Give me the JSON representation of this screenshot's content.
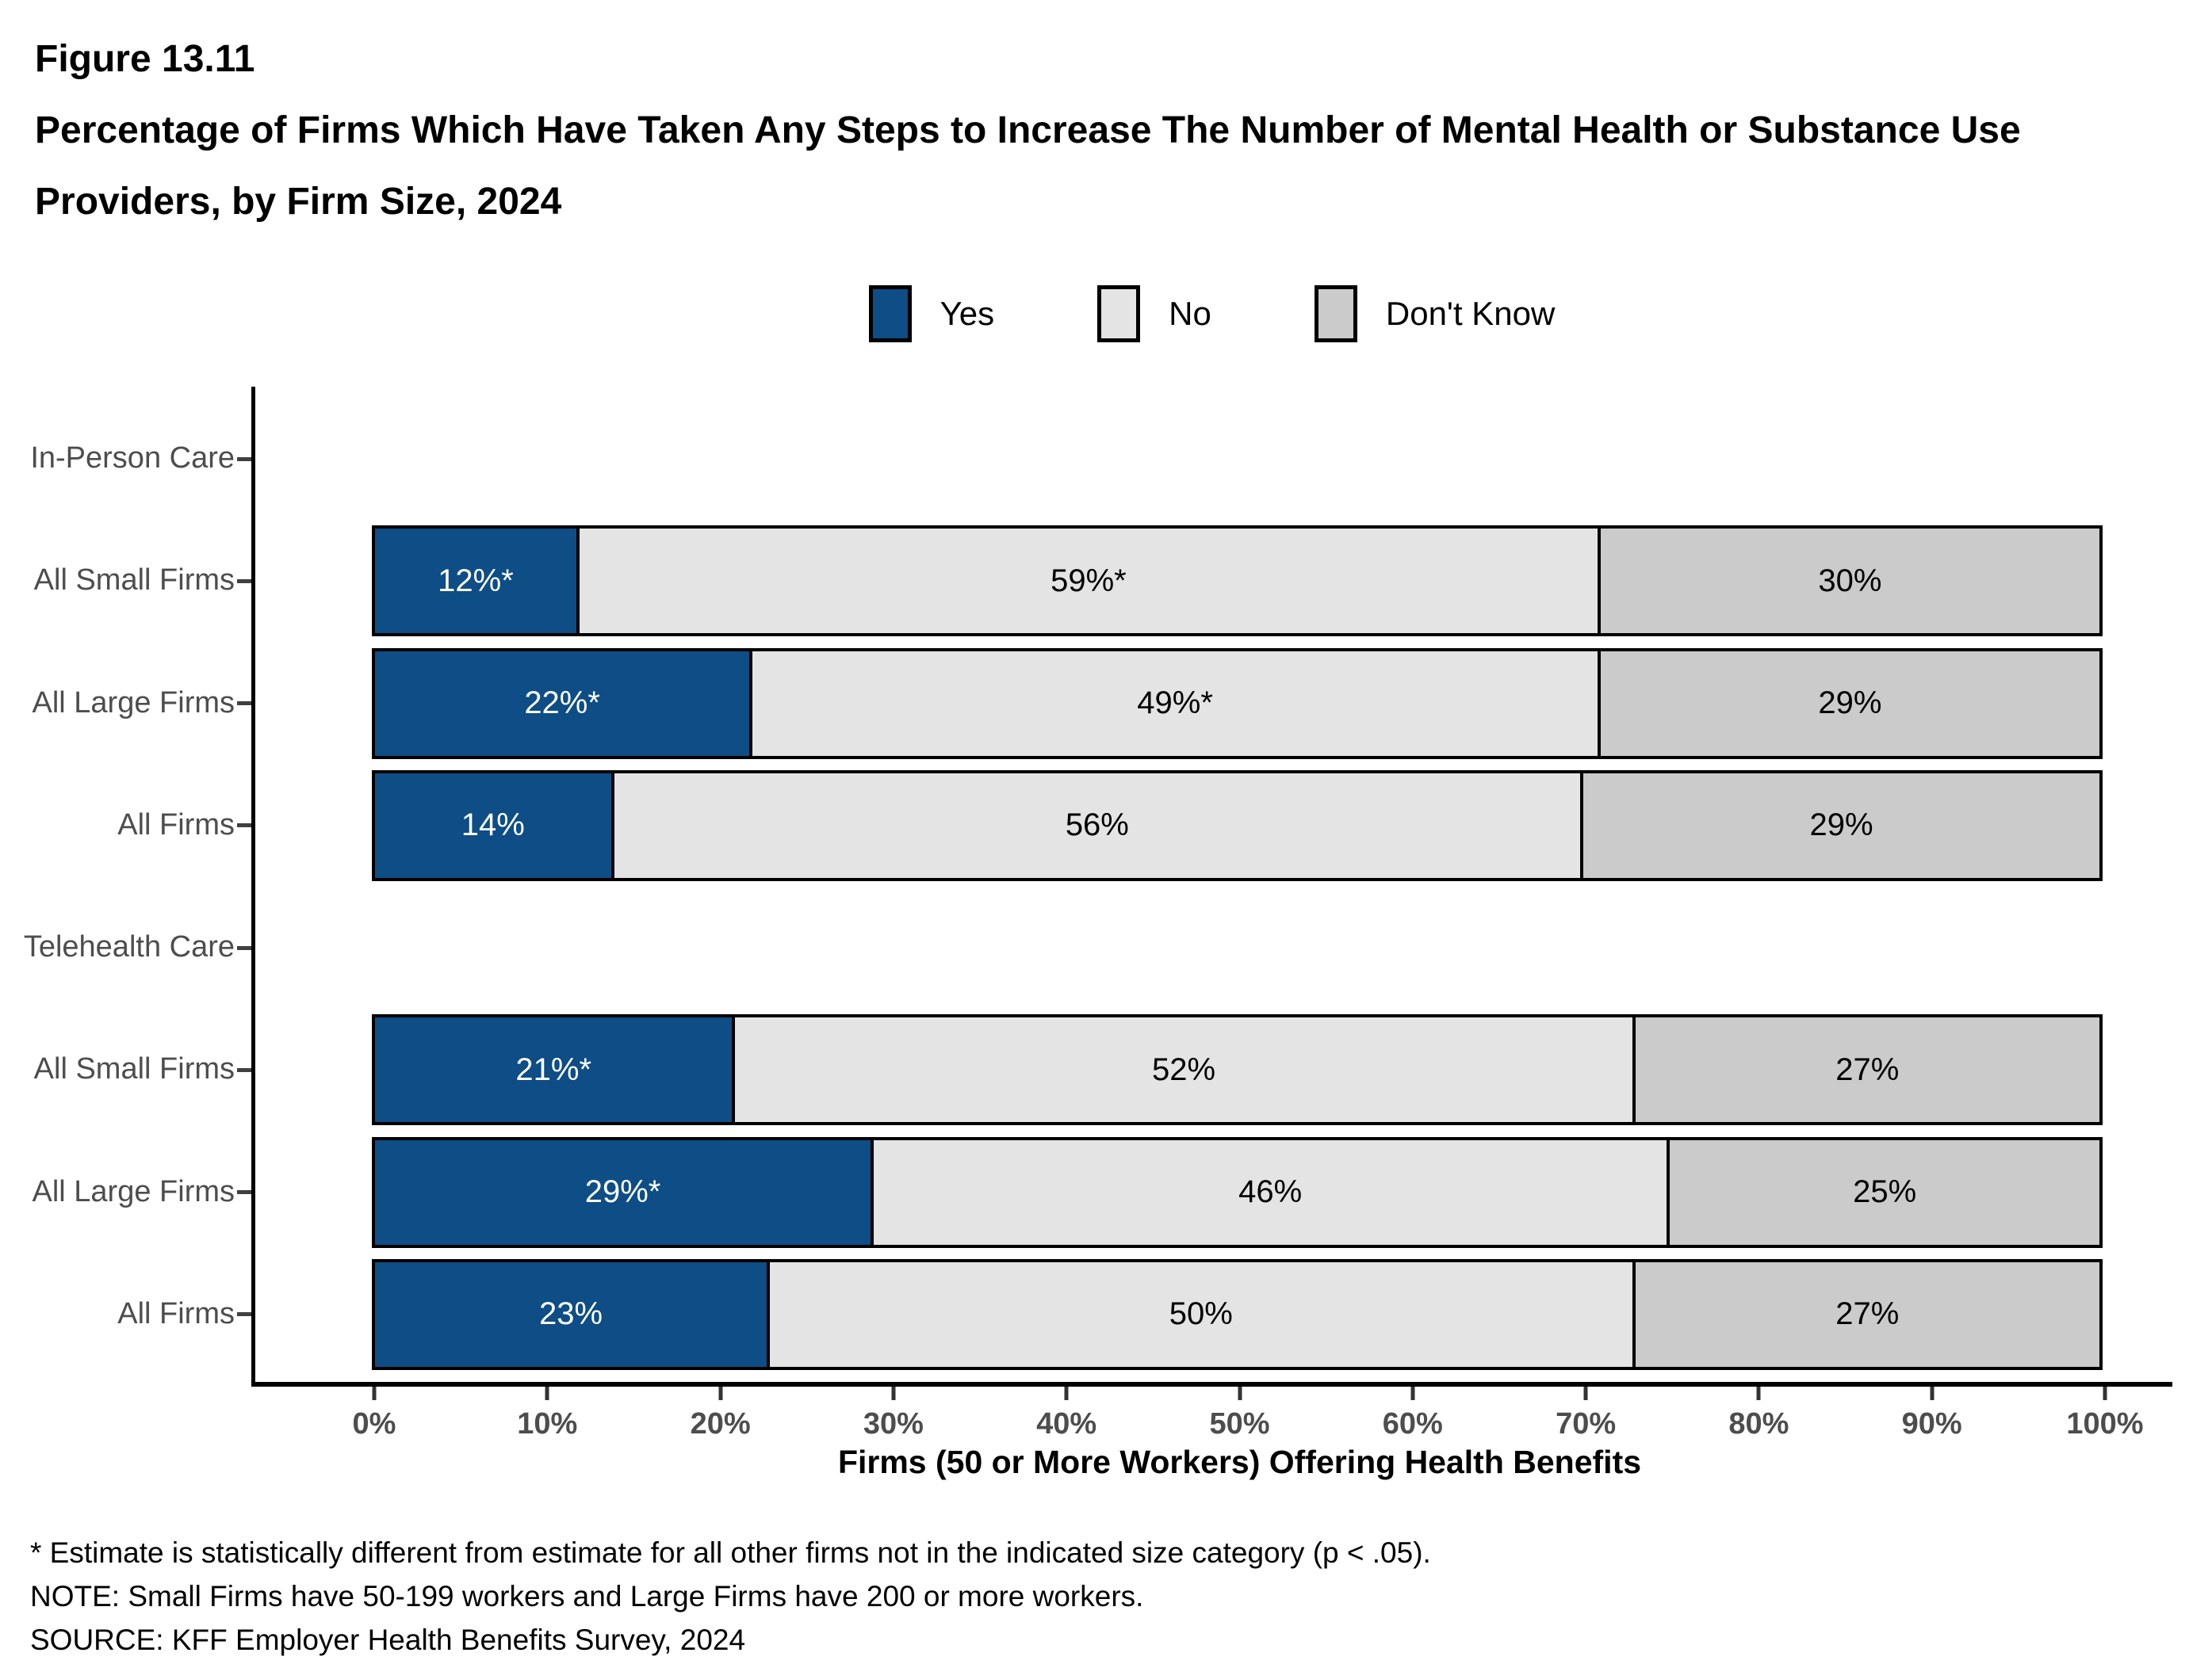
{
  "figure": {
    "number": "Figure 13.11",
    "title": "Percentage of Firms Which Have Taken Any Steps to Increase The Number of Mental Health or Substance Use Providers, by Firm Size, 2024"
  },
  "legend": {
    "items": [
      {
        "label": "Yes",
        "color": "#0e4d85",
        "text_color": "#ffffff"
      },
      {
        "label": "No",
        "color": "#e4e4e4",
        "text_color": "#000000"
      },
      {
        "label": "Don't Know",
        "color": "#cbcbcb",
        "text_color": "#000000"
      }
    ]
  },
  "chart_data": {
    "type": "bar",
    "orientation": "horizontal",
    "stacked": true,
    "series_names": [
      "Yes",
      "No",
      "Don't Know"
    ],
    "series_colors": [
      "#0e4d85",
      "#e4e4e4",
      "#cbcbcb"
    ],
    "x_axis": {
      "label": "Firms (50 or More Workers) Offering Health Benefits",
      "ticks": [
        "0%",
        "10%",
        "20%",
        "30%",
        "40%",
        "50%",
        "60%",
        "70%",
        "80%",
        "90%",
        "100%"
      ],
      "range": [
        0,
        100
      ]
    },
    "rows": [
      {
        "label": "In-Person Care",
        "header": true
      },
      {
        "label": "All Small Firms",
        "values": [
          12,
          59,
          30
        ],
        "value_labels": [
          "12%*",
          "59%*",
          "30%"
        ]
      },
      {
        "label": "All Large Firms",
        "values": [
          22,
          49,
          29
        ],
        "value_labels": [
          "22%*",
          "49%*",
          "29%"
        ]
      },
      {
        "label": "All Firms",
        "values": [
          14,
          56,
          29
        ],
        "value_labels": [
          "14%",
          "56%",
          "29%"
        ]
      },
      {
        "label": "Telehealth Care",
        "header": true
      },
      {
        "label": "All Small Firms",
        "values": [
          21,
          52,
          27
        ],
        "value_labels": [
          "21%*",
          "52%",
          "27%"
        ]
      },
      {
        "label": "All Large Firms",
        "values": [
          29,
          46,
          25
        ],
        "value_labels": [
          "29%*",
          "46%",
          "25%"
        ]
      },
      {
        "label": "All Firms",
        "values": [
          23,
          50,
          27
        ],
        "value_labels": [
          "23%",
          "50%",
          "27%"
        ]
      }
    ]
  },
  "footnotes": [
    "* Estimate is statistically different from estimate for all other firms not in the indicated size category (p < .05).",
    "NOTE: Small Firms have 50-199 workers and Large Firms have 200 or more workers.",
    "SOURCE: KFF Employer Health Benefits Survey, 2024"
  ]
}
